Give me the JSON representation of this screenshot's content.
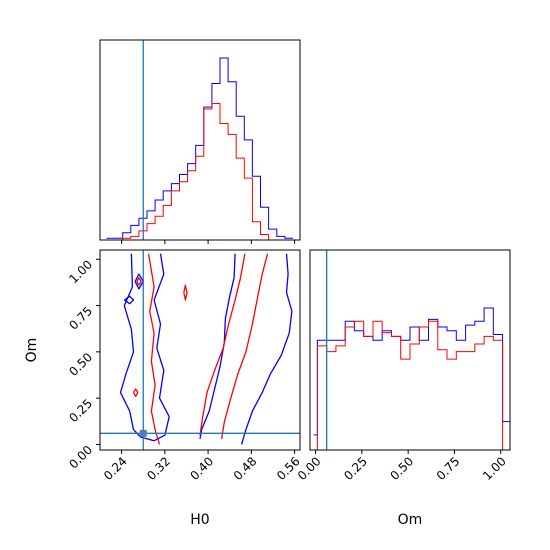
{
  "chart_data": [
    {
      "panel": "H0 histogram (top-left)",
      "type": "histogram",
      "xlim": [
        0.2,
        0.57
      ],
      "truth_line": 0.28,
      "truth_color": "#1f77b4",
      "series": [
        {
          "color": "#0000ff",
          "bin_edges": [
            0.212,
            0.227,
            0.242,
            0.257,
            0.272,
            0.287,
            0.302,
            0.317,
            0.332,
            0.347,
            0.362,
            0.377,
            0.392,
            0.407,
            0.422,
            0.437,
            0.452,
            0.467,
            0.482,
            0.497,
            0.512,
            0.527,
            0.542,
            0.557
          ],
          "heights": [
            0.01,
            0.01,
            0.04,
            0.08,
            0.12,
            0.16,
            0.22,
            0.27,
            0.31,
            0.36,
            0.42,
            0.52,
            0.73,
            0.86,
            1.0,
            0.87,
            0.68,
            0.55,
            0.35,
            0.18,
            0.06,
            0.02,
            0.01
          ]
        },
        {
          "color": "#ff0000",
          "bin_edges": [
            0.212,
            0.227,
            0.242,
            0.257,
            0.272,
            0.287,
            0.302,
            0.317,
            0.332,
            0.347,
            0.362,
            0.377,
            0.392,
            0.407,
            0.422,
            0.437,
            0.452,
            0.467,
            0.482,
            0.497,
            0.512,
            0.527,
            0.542,
            0.557
          ],
          "heights": [
            0.0,
            0.0,
            0.01,
            0.02,
            0.05,
            0.09,
            0.13,
            0.19,
            0.27,
            0.32,
            0.38,
            0.46,
            0.72,
            0.75,
            0.64,
            0.58,
            0.45,
            0.34,
            0.1,
            0.03,
            0.0,
            0.0,
            0.0
          ]
        }
      ]
    },
    {
      "panel": "H0 vs Om contours (bottom-left)",
      "type": "contour",
      "xlabel": "H0",
      "ylabel": "Om",
      "xlim": [
        0.2,
        0.57
      ],
      "ylim": [
        -0.03,
        1.05
      ],
      "x_ticks": [
        "0.24",
        "0.32",
        "0.40",
        "0.48",
        "0.56"
      ],
      "x_tick_values": [
        0.24,
        0.32,
        0.4,
        0.48,
        0.56
      ],
      "y_ticks": [
        "0.00",
        "0.25",
        "0.50",
        "0.75",
        "1.00"
      ],
      "y_tick_values": [
        0.0,
        0.25,
        0.5,
        0.75,
        1.0
      ],
      "truth_point": [
        0.28,
        0.06
      ],
      "truth_color": "#1f77b4",
      "contours": [
        {
          "color": "#0000ff",
          "points": [
            [
              0.258,
              1.03
            ],
            [
              0.26,
              0.85
            ],
            [
              0.245,
              0.75
            ],
            [
              0.258,
              0.62
            ],
            [
              0.262,
              0.5
            ],
            [
              0.248,
              0.38
            ],
            [
              0.238,
              0.28
            ],
            [
              0.255,
              0.18
            ],
            [
              0.262,
              0.08
            ],
            [
              0.275,
              0.04
            ],
            [
              0.3,
              0.02
            ],
            [
              0.32,
              0.05
            ],
            [
              0.328,
              0.15
            ],
            [
              0.31,
              0.25
            ],
            [
              0.318,
              0.4
            ],
            [
              0.305,
              0.52
            ],
            [
              0.312,
              0.65
            ],
            [
              0.3,
              0.78
            ],
            [
              0.318,
              0.92
            ],
            [
              0.312,
              1.03
            ]
          ]
        },
        {
          "color": "#0000ff",
          "points": [
            [
              0.545,
              1.03
            ],
            [
              0.548,
              0.92
            ],
            [
              0.545,
              0.82
            ],
            [
              0.555,
              0.72
            ],
            [
              0.55,
              0.6
            ],
            [
              0.535,
              0.48
            ],
            [
              0.515,
              0.38
            ],
            [
              0.5,
              0.28
            ],
            [
              0.482,
              0.18
            ],
            [
              0.47,
              0.08
            ],
            [
              0.462,
              0.0
            ]
          ]
        },
        {
          "color": "#0000ff",
          "points": [
            [
              0.45,
              1.03
            ],
            [
              0.448,
              0.9
            ],
            [
              0.44,
              0.8
            ],
            [
              0.432,
              0.68
            ],
            [
              0.43,
              0.55
            ],
            [
              0.422,
              0.42
            ],
            [
              0.412,
              0.3
            ],
            [
              0.402,
              0.18
            ],
            [
              0.388,
              0.08
            ],
            [
              0.385,
              0.03
            ]
          ]
        },
        {
          "color": "#0000ff",
          "points": [
            [
              0.245,
              0.78
            ],
            [
              0.255,
              0.76
            ],
            [
              0.262,
              0.78
            ],
            [
              0.255,
              0.8
            ],
            [
              0.245,
              0.78
            ]
          ]
        },
        {
          "color": "#0000ff",
          "points": [
            [
              0.265,
              0.88
            ],
            [
              0.272,
              0.84
            ],
            [
              0.28,
              0.88
            ],
            [
              0.272,
              0.92
            ],
            [
              0.265,
              0.88
            ]
          ]
        },
        {
          "color": "#ff0000",
          "points": [
            [
              0.29,
              1.03
            ],
            [
              0.3,
              0.85
            ],
            [
              0.292,
              0.72
            ],
            [
              0.3,
              0.6
            ],
            [
              0.295,
              0.45
            ],
            [
              0.302,
              0.32
            ],
            [
              0.295,
              0.18
            ],
            [
              0.302,
              0.08
            ],
            [
              0.31,
              0.0
            ]
          ]
        },
        {
          "color": "#ff0000",
          "points": [
            [
              0.51,
              1.03
            ],
            [
              0.5,
              0.92
            ],
            [
              0.492,
              0.8
            ],
            [
              0.482,
              0.65
            ],
            [
              0.47,
              0.5
            ],
            [
              0.455,
              0.38
            ],
            [
              0.442,
              0.25
            ],
            [
              0.43,
              0.12
            ],
            [
              0.425,
              0.03
            ]
          ]
        },
        {
          "color": "#ff0000",
          "points": [
            [
              0.468,
              1.03
            ],
            [
              0.46,
              0.9
            ],
            [
              0.45,
              0.78
            ],
            [
              0.438,
              0.65
            ],
            [
              0.428,
              0.52
            ],
            [
              0.412,
              0.4
            ],
            [
              0.398,
              0.28
            ],
            [
              0.39,
              0.15
            ],
            [
              0.385,
              0.05
            ]
          ]
        },
        {
          "color": "#ff0000",
          "points": [
            [
              0.268,
              0.88
            ],
            [
              0.272,
              0.86
            ],
            [
              0.276,
              0.88
            ],
            [
              0.272,
              0.9
            ],
            [
              0.268,
              0.88
            ]
          ]
        },
        {
          "color": "#ff0000",
          "points": [
            [
              0.262,
              0.28
            ],
            [
              0.266,
              0.26
            ],
            [
              0.27,
              0.28
            ],
            [
              0.266,
              0.3
            ],
            [
              0.262,
              0.28
            ]
          ]
        },
        {
          "color": "#ff0000",
          "points": [
            [
              0.355,
              0.82
            ],
            [
              0.358,
              0.78
            ],
            [
              0.361,
              0.82
            ],
            [
              0.358,
              0.86
            ],
            [
              0.355,
              0.82
            ]
          ]
        }
      ]
    },
    {
      "panel": "Om histogram (bottom-right)",
      "type": "histogram",
      "xlabel": "Om",
      "xlim": [
        -0.03,
        1.05
      ],
      "x_ticks": [
        "0.00",
        "0.25",
        "0.50",
        "0.75",
        "1.00"
      ],
      "x_tick_values": [
        0.0,
        0.25,
        0.5,
        0.75,
        1.0
      ],
      "truth_line": 0.06,
      "truth_color": "#1f77b4",
      "series": [
        {
          "color": "#0000ff",
          "bin_edges": [
            -0.01,
            0.01,
            0.06,
            0.11,
            0.16,
            0.21,
            0.26,
            0.31,
            0.36,
            0.41,
            0.46,
            0.51,
            0.56,
            0.61,
            0.66,
            0.71,
            0.76,
            0.81,
            0.86,
            0.91,
            0.96,
            1.01,
            1.05
          ],
          "heights": [
            0.08,
            0.58,
            0.58,
            0.58,
            0.68,
            0.63,
            0.6,
            0.58,
            0.63,
            0.6,
            0.58,
            0.65,
            0.58,
            0.69,
            0.65,
            0.63,
            0.58,
            0.66,
            0.68,
            0.75,
            0.61,
            0.15
          ]
        },
        {
          "color": "#ff0000",
          "bin_edges": [
            -0.01,
            0.01,
            0.06,
            0.11,
            0.16,
            0.21,
            0.26,
            0.31,
            0.36,
            0.41,
            0.46,
            0.51,
            0.56,
            0.61,
            0.66,
            0.71,
            0.76,
            0.81,
            0.86,
            0.91,
            0.96,
            1.01,
            1.05
          ],
          "heights": [
            0.0,
            0.55,
            0.52,
            0.55,
            0.65,
            0.68,
            0.6,
            0.68,
            0.62,
            0.6,
            0.48,
            0.56,
            0.65,
            0.68,
            0.53,
            0.48,
            0.52,
            0.52,
            0.56,
            0.6,
            0.58,
            0.0
          ]
        }
      ]
    }
  ]
}
